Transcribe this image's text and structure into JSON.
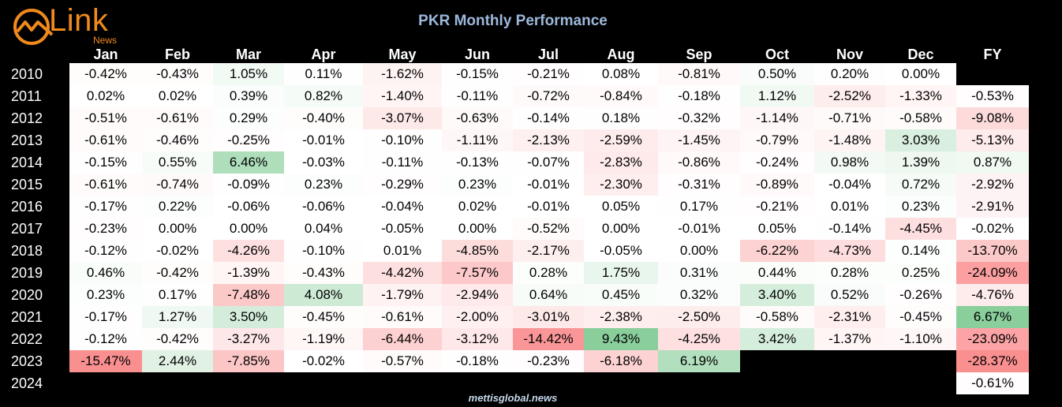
{
  "logo": {
    "text": "Link",
    "sub": "News"
  },
  "title": "PKR Monthly Performance",
  "footer": "mettisglobal.news",
  "colors": {
    "positive": "#63be7b",
    "negative": "#f8696b",
    "neutral": "#ffffff",
    "background": "#000000"
  },
  "chart_data": {
    "type": "table",
    "title": "PKR Monthly Performance",
    "columns": [
      "Jan",
      "Feb",
      "Mar",
      "Apr",
      "May",
      "Jun",
      "Jul",
      "Aug",
      "Sep",
      "Oct",
      "Nov",
      "Dec",
      "FY"
    ],
    "rows": [
      {
        "year": "2010",
        "values": [
          "-0.42%",
          "-0.43%",
          "1.05%",
          "0.11%",
          "-1.62%",
          "-0.15%",
          "-0.21%",
          "0.08%",
          "-0.81%",
          "0.50%",
          "0.20%",
          "0.00%",
          null
        ]
      },
      {
        "year": "2011",
        "values": [
          "0.02%",
          "0.02%",
          "0.39%",
          "0.82%",
          "-1.40%",
          "-0.11%",
          "-0.72%",
          "-0.84%",
          "-0.18%",
          "1.12%",
          "-2.52%",
          "-1.33%",
          "-0.53%"
        ]
      },
      {
        "year": "2012",
        "values": [
          "-0.51%",
          "-0.61%",
          "0.29%",
          "-0.40%",
          "-3.07%",
          "-0.63%",
          "-0.14%",
          "0.18%",
          "-0.32%",
          "-1.14%",
          "-0.71%",
          "-0.58%",
          "-9.08%"
        ]
      },
      {
        "year": "2013",
        "values": [
          "-0.61%",
          "-0.46%",
          "-0.25%",
          "-0.01%",
          "-0.10%",
          "-1.11%",
          "-2.13%",
          "-2.59%",
          "-1.45%",
          "-0.79%",
          "-1.48%",
          "3.03%",
          "-5.13%"
        ]
      },
      {
        "year": "2014",
        "values": [
          "-0.15%",
          "0.55%",
          "6.46%",
          "-0.03%",
          "-0.11%",
          "-0.13%",
          "-0.07%",
          "-2.83%",
          "-0.86%",
          "-0.24%",
          "0.98%",
          "1.39%",
          "0.87%"
        ]
      },
      {
        "year": "2015",
        "values": [
          "-0.61%",
          "-0.74%",
          "-0.09%",
          "0.23%",
          "-0.29%",
          "0.23%",
          "-0.01%",
          "-2.30%",
          "-0.31%",
          "-0.89%",
          "-0.04%",
          "0.72%",
          "-2.92%"
        ]
      },
      {
        "year": "2016",
        "values": [
          "-0.17%",
          "0.22%",
          "-0.06%",
          "-0.06%",
          "-0.04%",
          "0.02%",
          "-0.01%",
          "0.05%",
          "0.17%",
          "-0.21%",
          "0.01%",
          "0.23%",
          "-2.91%"
        ]
      },
      {
        "year": "2017",
        "values": [
          "-0.23%",
          "0.00%",
          "0.00%",
          "0.04%",
          "-0.05%",
          "0.00%",
          "-0.52%",
          "0.00%",
          "-0.01%",
          "0.05%",
          "-0.14%",
          "-4.45%",
          "-0.02%"
        ]
      },
      {
        "year": "2018",
        "values": [
          "-0.12%",
          "-0.02%",
          "-4.26%",
          "-0.10%",
          "0.01%",
          "-4.85%",
          "-2.17%",
          "-0.05%",
          "0.00%",
          "-6.22%",
          "-4.73%",
          "0.14%",
          "-13.70%"
        ]
      },
      {
        "year": "2019",
        "values": [
          "0.46%",
          "-0.42%",
          "-1.39%",
          "-0.43%",
          "-4.42%",
          "-7.57%",
          "0.28%",
          "1.75%",
          "0.31%",
          "0.44%",
          "0.28%",
          "0.25%",
          "-24.09%"
        ]
      },
      {
        "year": "2020",
        "values": [
          "0.23%",
          "0.17%",
          "-7.48%",
          "4.08%",
          "-1.79%",
          "-2.94%",
          "0.64%",
          "0.45%",
          "0.32%",
          "3.40%",
          "0.52%",
          "-0.26%",
          "-4.76%"
        ]
      },
      {
        "year": "2021",
        "values": [
          "-0.17%",
          "1.27%",
          "3.50%",
          "-0.45%",
          "-0.61%",
          "-2.00%",
          "-3.01%",
          "-2.38%",
          "-2.50%",
          "-0.58%",
          "-2.31%",
          "-0.45%",
          "6.67%"
        ]
      },
      {
        "year": "2022",
        "values": [
          "-0.12%",
          "-0.42%",
          "-3.27%",
          "-1.19%",
          "-6.44%",
          "-3.12%",
          "-14.42%",
          "9.43%",
          "-4.25%",
          "3.42%",
          "-1.37%",
          "-1.10%",
          "-23.09%"
        ]
      },
      {
        "year": "2023",
        "values": [
          "-15.47%",
          "2.44%",
          "-7.85%",
          "-0.02%",
          "-0.57%",
          "-0.18%",
          "-0.23%",
          "-6.18%",
          "6.19%",
          null,
          null,
          null,
          "-28.37%"
        ]
      },
      {
        "year": "2024",
        "values": [
          null,
          null,
          null,
          null,
          null,
          null,
          null,
          null,
          null,
          null,
          null,
          null,
          "-0.61%"
        ]
      }
    ]
  }
}
